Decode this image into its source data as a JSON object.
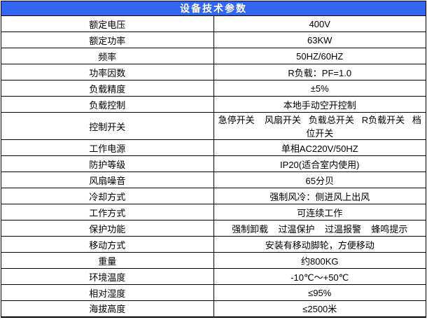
{
  "table": {
    "title": "设备技术参数",
    "header_bg": "#3366F0",
    "header_text_color": "#FFFFFF",
    "border_color": "#000000",
    "rows": [
      {
        "label": "额定电压",
        "value": "400V"
      },
      {
        "label": "额定功率",
        "value": "63KW"
      },
      {
        "label": "频率",
        "value": "50HZ/60HZ"
      },
      {
        "label": "功率因数",
        "value": "R负载：PF=1.0"
      },
      {
        "label": "负载精度",
        "value": "±5%"
      },
      {
        "label": "负载控制",
        "value": "本地手动空开控制"
      },
      {
        "label": "控制开关",
        "value": "急停开关    风扇开关   负载总开关   R负载开关   档位开关"
      },
      {
        "label": "工作电源",
        "value": "单相AC220V/50HZ"
      },
      {
        "label": "防护等级",
        "value": "IP20(适合室内使用)"
      },
      {
        "label": "风扇噪音",
        "value": "65分贝"
      },
      {
        "label": "冷却方式",
        "value": "强制风冷：侧进风上出风"
      },
      {
        "label": "工作方式",
        "value": "可连续工作"
      },
      {
        "label": "保护功能",
        "value": "强制卸载    过温保护    过温报警    蜂鸣提示"
      },
      {
        "label": "移动方式",
        "value": "安装有移动脚轮，方便移动"
      },
      {
        "label": "重量",
        "value": "约800KG"
      },
      {
        "label": "环境温度",
        "value": "-10℃～+50℃"
      },
      {
        "label": "相对湿度",
        "value": "≤95%"
      },
      {
        "label": "海拔高度",
        "value": "≤2500米"
      }
    ]
  }
}
